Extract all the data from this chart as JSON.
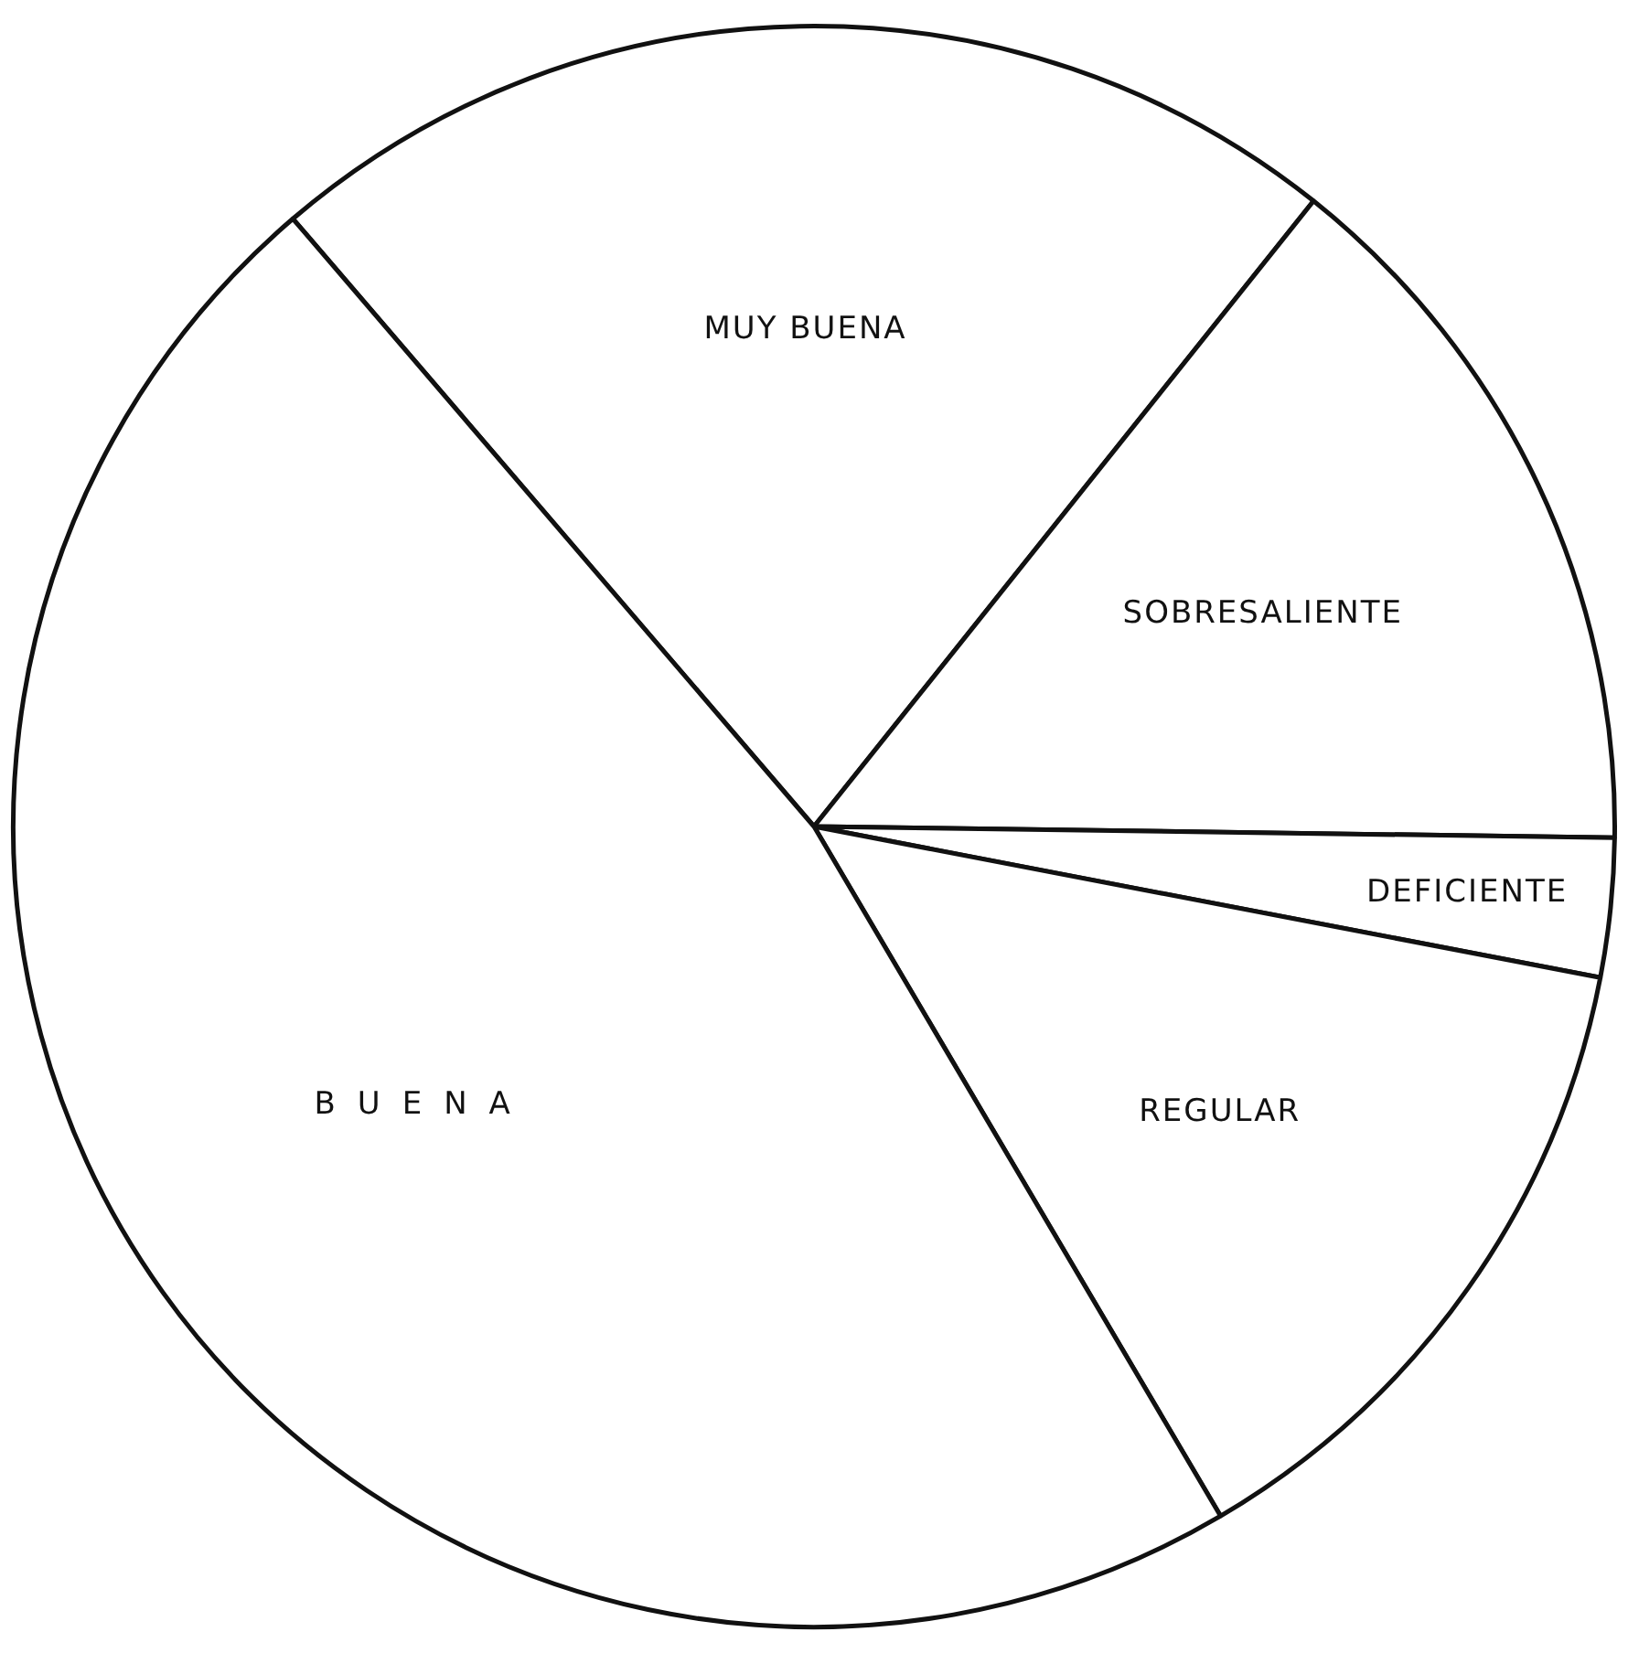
{
  "chart_data": {
    "type": "pie",
    "categories": [
      "MUY BUENA",
      "SOBRESALIENTE",
      "DEFICIENTE",
      "REGULAR",
      "BUENA"
    ],
    "values": [
      22,
      14.5,
      2.8,
      13.5,
      47.2
    ],
    "colors": [
      "#ffffff",
      "#ffffff",
      "#ffffff",
      "#ffffff",
      "#ffffff"
    ],
    "legend": false
  }
}
